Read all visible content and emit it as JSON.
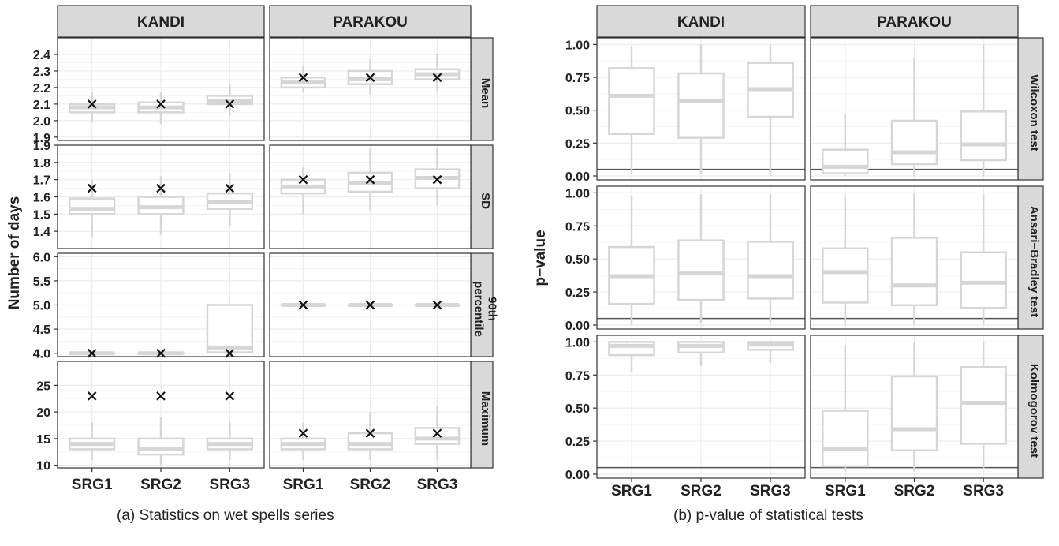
{
  "charts": {
    "a": {
      "caption": "(a) Statistics on wet spells series",
      "ylabel": "Number of days",
      "stations": [
        "KANDI",
        "PARAKOU"
      ],
      "categories": [
        "SRG1",
        "SRG2",
        "SRG3"
      ],
      "panels": [
        {
          "strip": [
            "Mean"
          ],
          "ylim": [
            1.88,
            2.5
          ],
          "ticks": [
            1.9,
            2.0,
            2.1,
            2.2,
            2.3,
            2.4
          ],
          "tick_labels": [
            "1.9",
            "2.0",
            "2.1",
            "2.2",
            "2.3",
            "2.4"
          ]
        },
        {
          "strip": [
            "SD"
          ],
          "ylim": [
            1.3,
            1.9
          ],
          "ticks": [
            1.4,
            1.5,
            1.6,
            1.7,
            1.8,
            1.9
          ],
          "tick_labels": [
            "1.4",
            "1.5",
            "1.6",
            "1.7",
            "1.8",
            "1.9"
          ]
        },
        {
          "strip": [
            "90th",
            "percentile"
          ],
          "ylim": [
            3.93,
            6.07
          ],
          "ticks": [
            4.0,
            4.5,
            5.0,
            5.5,
            6.0
          ],
          "tick_labels": [
            "4.0",
            "4.5",
            "5.0",
            "5.5",
            "6.0"
          ]
        },
        {
          "strip": [
            "Maximum"
          ],
          "ylim": [
            9.5,
            29.5
          ],
          "ticks": [
            10,
            15,
            20,
            25
          ],
          "tick_labels": [
            "10",
            "15",
            "20",
            "25"
          ]
        }
      ]
    },
    "b": {
      "caption": "(b) p-value of statistical tests",
      "ylabel": "p−value",
      "stations": [
        "KANDI",
        "PARAKOU"
      ],
      "categories": [
        "SRG1",
        "SRG2",
        "SRG3"
      ],
      "panels": [
        {
          "strip": [
            "Wilcoxon test"
          ],
          "ylim": [
            -0.03,
            1.05
          ],
          "ticks": [
            0,
            0.25,
            0.5,
            0.75,
            1.0
          ],
          "tick_labels": [
            "0.00",
            "0.25",
            "0.50",
            "0.75",
            "1.00"
          ],
          "hline": 0.05
        },
        {
          "strip": [
            "Ansari−Bradley test"
          ],
          "ylim": [
            -0.03,
            1.05
          ],
          "ticks": [
            0,
            0.25,
            0.5,
            0.75,
            1.0
          ],
          "tick_labels": [
            "0.00",
            "0.25",
            "0.50",
            "0.75",
            "1.00"
          ],
          "hline": 0.05
        },
        {
          "strip": [
            "Kolmogorov test"
          ],
          "ylim": [
            -0.03,
            1.05
          ],
          "ticks": [
            0,
            0.25,
            0.5,
            0.75,
            1.0
          ],
          "tick_labels": [
            "0.00",
            "0.25",
            "0.50",
            "0.75",
            "1.00"
          ],
          "hline": 0.05
        }
      ]
    }
  },
  "chart_data": [
    {
      "type": "boxplot",
      "ylabel": "Number of days",
      "facet_columns": [
        "KANDI",
        "PARAKOU"
      ],
      "facet_rows": [
        "Mean",
        "SD",
        "90th percentile",
        "Maximum"
      ],
      "categories": [
        "SRG1",
        "SRG2",
        "SRG3"
      ],
      "boxes": {
        "Mean": {
          "KANDI": [
            {
              "min": 1.99,
              "q1": 2.05,
              "median": 2.08,
              "q3": 2.1,
              "max": 2.17,
              "observed": 2.1
            },
            {
              "min": 1.98,
              "q1": 2.05,
              "median": 2.08,
              "q3": 2.11,
              "max": 2.17,
              "observed": 2.1
            },
            {
              "min": 2.03,
              "q1": 2.1,
              "median": 2.12,
              "q3": 2.15,
              "max": 2.22,
              "observed": 2.1
            }
          ],
          "PARAKOU": [
            {
              "min": 2.17,
              "q1": 2.2,
              "median": 2.23,
              "q3": 2.26,
              "max": 2.33,
              "observed": 2.26
            },
            {
              "min": 2.16,
              "q1": 2.22,
              "median": 2.25,
              "q3": 2.3,
              "max": 2.37,
              "observed": 2.26
            },
            {
              "min": 2.18,
              "q1": 2.25,
              "median": 2.28,
              "q3": 2.31,
              "max": 2.4,
              "observed": 2.26
            }
          ]
        },
        "SD": {
          "KANDI": [
            {
              "min": 1.37,
              "q1": 1.5,
              "median": 1.53,
              "q3": 1.59,
              "max": 1.7,
              "observed": 1.65
            },
            {
              "min": 1.38,
              "q1": 1.5,
              "median": 1.54,
              "q3": 1.6,
              "max": 1.72,
              "observed": 1.65
            },
            {
              "min": 1.43,
              "q1": 1.53,
              "median": 1.57,
              "q3": 1.62,
              "max": 1.74,
              "observed": 1.65
            }
          ],
          "PARAKOU": [
            {
              "min": 1.5,
              "q1": 1.62,
              "median": 1.66,
              "q3": 1.7,
              "max": 1.77,
              "observed": 1.7
            },
            {
              "min": 1.52,
              "q1": 1.63,
              "median": 1.68,
              "q3": 1.74,
              "max": 1.88,
              "observed": 1.7
            },
            {
              "min": 1.55,
              "q1": 1.65,
              "median": 1.71,
              "q3": 1.76,
              "max": 1.88,
              "observed": 1.7
            }
          ]
        },
        "90th percentile": {
          "KANDI": [
            {
              "min": 4.0,
              "q1": 4.0,
              "median": 4.0,
              "q3": 4.0,
              "max": 4.0,
              "observed": 4.0
            },
            {
              "min": 4.0,
              "q1": 4.0,
              "median": 4.0,
              "q3": 4.0,
              "max": 4.0,
              "observed": 4.0
            },
            {
              "min": 4.0,
              "q1": 4.02,
              "median": 4.12,
              "q3": 5.0,
              "max": 5.0,
              "observed": 4.0
            }
          ],
          "PARAKOU": [
            {
              "min": 5.0,
              "q1": 5.0,
              "median": 5.0,
              "q3": 5.0,
              "max": 5.0,
              "observed": 5.0
            },
            {
              "min": 5.0,
              "q1": 5.0,
              "median": 5.0,
              "q3": 5.0,
              "max": 5.0,
              "observed": 5.0
            },
            {
              "min": 5.0,
              "q1": 5.0,
              "median": 5.0,
              "q3": 5.0,
              "max": 5.0,
              "observed": 5.0
            }
          ]
        },
        "Maximum": {
          "KANDI": [
            {
              "min": 11,
              "q1": 13,
              "median": 14,
              "q3": 15,
              "max": 18,
              "observed": 23
            },
            {
              "min": 10,
              "q1": 12,
              "median": 13,
              "q3": 15,
              "max": 19,
              "observed": 23
            },
            {
              "min": 11,
              "q1": 13,
              "median": 14,
              "q3": 15,
              "max": 18,
              "observed": 23
            }
          ],
          "PARAKOU": [
            {
              "min": 11,
              "q1": 13,
              "median": 14,
              "q3": 15,
              "max": 18,
              "observed": 16
            },
            {
              "min": 11,
              "q1": 13,
              "median": 14,
              "q3": 16,
              "max": 20,
              "observed": 16
            },
            {
              "min": 11,
              "q1": 14,
              "median": 15,
              "q3": 17,
              "max": 21,
              "observed": 16
            }
          ]
        }
      }
    },
    {
      "type": "boxplot",
      "ylabel": "p−value",
      "facet_columns": [
        "KANDI",
        "PARAKOU"
      ],
      "facet_rows": [
        "Wilcoxon test",
        "Ansari−Bradley test",
        "Kolmogorov test"
      ],
      "categories": [
        "SRG1",
        "SRG2",
        "SRG3"
      ],
      "reference_line": 0.05,
      "boxes": {
        "Wilcoxon test": {
          "KANDI": [
            {
              "min": 0.01,
              "q1": 0.32,
              "median": 0.61,
              "q3": 0.82,
              "max": 0.99
            },
            {
              "min": 0.02,
              "q1": 0.29,
              "median": 0.57,
              "q3": 0.78,
              "max": 1.0
            },
            {
              "min": 0.0,
              "q1": 0.45,
              "median": 0.66,
              "q3": 0.86,
              "max": 1.0
            }
          ],
          "PARAKOU": [
            {
              "min": 0.0,
              "q1": 0.02,
              "median": 0.07,
              "q3": 0.2,
              "max": 0.47
            },
            {
              "min": 0.0,
              "q1": 0.09,
              "median": 0.18,
              "q3": 0.42,
              "max": 0.9
            },
            {
              "min": 0.0,
              "q1": 0.12,
              "median": 0.24,
              "q3": 0.49,
              "max": 1.0
            }
          ]
        },
        "Ansari−Bradley test": {
          "KANDI": [
            {
              "min": 0.0,
              "q1": 0.16,
              "median": 0.37,
              "q3": 0.59,
              "max": 0.98
            },
            {
              "min": 0.01,
              "q1": 0.19,
              "median": 0.39,
              "q3": 0.64,
              "max": 0.99
            },
            {
              "min": 0.01,
              "q1": 0.2,
              "median": 0.37,
              "q3": 0.63,
              "max": 0.99
            }
          ],
          "PARAKOU": [
            {
              "min": 0.0,
              "q1": 0.17,
              "median": 0.4,
              "q3": 0.58,
              "max": 0.97
            },
            {
              "min": 0.0,
              "q1": 0.15,
              "median": 0.3,
              "q3": 0.66,
              "max": 1.0
            },
            {
              "min": 0.0,
              "q1": 0.13,
              "median": 0.32,
              "q3": 0.55,
              "max": 0.99
            }
          ]
        },
        "Kolmogorov test": {
          "KANDI": [
            {
              "min": 0.77,
              "q1": 0.9,
              "median": 0.97,
              "q3": 1.0,
              "max": 1.0
            },
            {
              "min": 0.82,
              "q1": 0.92,
              "median": 0.97,
              "q3": 1.0,
              "max": 1.0
            },
            {
              "min": 0.84,
              "q1": 0.94,
              "median": 0.98,
              "q3": 1.0,
              "max": 1.0
            }
          ],
          "PARAKOU": [
            {
              "min": 0.02,
              "q1": 0.06,
              "median": 0.19,
              "q3": 0.48,
              "max": 0.98
            },
            {
              "min": 0.02,
              "q1": 0.18,
              "median": 0.34,
              "q3": 0.74,
              "max": 1.0
            },
            {
              "min": 0.04,
              "q1": 0.23,
              "median": 0.54,
              "q3": 0.81,
              "max": 1.0
            }
          ]
        }
      }
    }
  ]
}
